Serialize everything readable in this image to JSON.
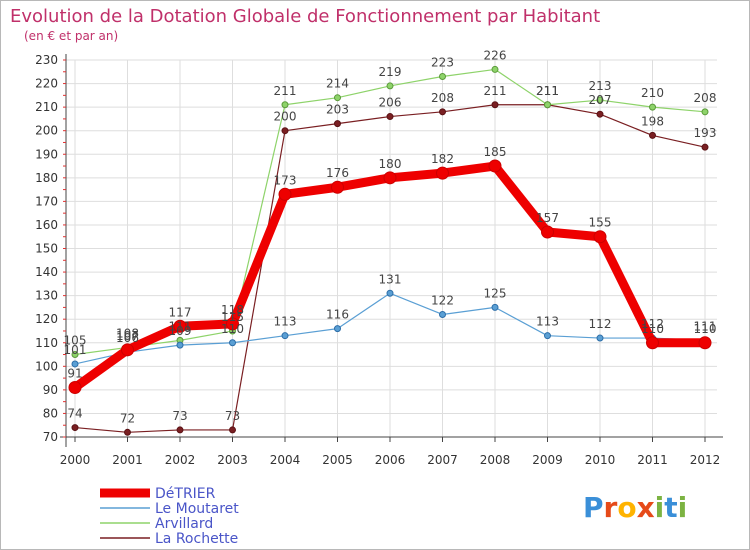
{
  "chart_data": {
    "type": "line",
    "title": "Evolution de la Dotation Globale de Fonctionnement par Habitant",
    "subtitle": "(en € et par an)",
    "xlabel": "",
    "ylabel": "",
    "ylim": [
      70,
      230
    ],
    "yticks": [
      "70",
      "80",
      "90",
      "100",
      "110",
      "120",
      "130",
      "140",
      "150",
      "160",
      "170",
      "180",
      "190",
      "200",
      "210",
      "220",
      "230"
    ],
    "x": [
      "2000",
      "2001",
      "2002",
      "2003",
      "2004",
      "2005",
      "2006",
      "2007",
      "2008",
      "2009",
      "2010",
      "2011",
      "2012"
    ],
    "legend_position": "bottom-left",
    "series": [
      {
        "name": "La Rochette",
        "color": "#7a1f22",
        "values": [
          74,
          72,
          73,
          73,
          200,
          203,
          206,
          208,
          211,
          211,
          207,
          198,
          193
        ]
      },
      {
        "name": "Arvillard",
        "color": "#8ed36a",
        "values": [
          105,
          108,
          111,
          115,
          211,
          214,
          219,
          223,
          226,
          211,
          213,
          210,
          208
        ]
      },
      {
        "name": "Le Moutaret",
        "color": "#5a9fd4",
        "values": [
          101,
          106,
          109,
          110,
          113,
          116,
          131,
          122,
          125,
          113,
          112,
          112,
          111
        ]
      },
      {
        "name": "DéTRIER",
        "color": "#ee0000",
        "values": [
          91,
          107,
          117,
          118,
          173,
          176,
          180,
          182,
          185,
          157,
          155,
          110,
          110
        ]
      }
    ],
    "labels": {
      "La Rochette": [
        "74",
        "72",
        "73",
        "73",
        "200",
        "203",
        "206",
        "208",
        "211",
        "211",
        "207",
        "198",
        "193"
      ],
      "Arvillard": [
        "105",
        "108",
        "111",
        "115",
        "211",
        "214",
        "219",
        "223",
        "226",
        "211",
        "213",
        "210",
        "208"
      ],
      "Le Moutaret": [
        "101",
        "106",
        "109",
        "110",
        "113",
        "116",
        "131",
        "122",
        "125",
        "113",
        "112",
        "112",
        "111"
      ],
      "DéTRIER": [
        "91",
        "107",
        "117",
        "118",
        "173",
        "176",
        "180",
        "182",
        "185",
        "157",
        "155",
        "110",
        "110"
      ]
    },
    "legend": [
      "DéTRIER",
      "Le Moutaret",
      "Arvillard",
      "La Rochette"
    ]
  },
  "logo": {
    "text": "Proxiti",
    "colors": [
      "#3a8fd8",
      "#e64a19",
      "#ffb300",
      "#e64a19",
      "#7cb342",
      "#3a8fd8",
      "#7cb342"
    ]
  }
}
